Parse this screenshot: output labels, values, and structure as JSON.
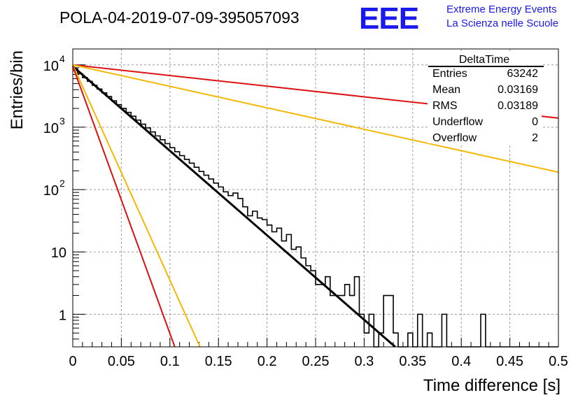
{
  "chart_data": {
    "type": "histogram",
    "title": "POLA-04-2019-07-09-395057093",
    "xlabel": "Time difference [s]",
    "ylabel": "Entries/bin",
    "xlim": [
      0,
      0.5
    ],
    "ylim": [
      0.3,
      18000
    ],
    "yscale": "log",
    "grid": true,
    "x_tick_labels": [
      "0",
      "0.05",
      "0.1",
      "0.15",
      "0.2",
      "0.25",
      "0.3",
      "0.35",
      "0.4",
      "0.45",
      "0.5"
    ],
    "y_tick_labels": [
      {
        "base": "1",
        "exp": ""
      },
      {
        "base": "10",
        "exp": ""
      },
      {
        "base": "10",
        "exp": "2"
      },
      {
        "base": "10",
        "exp": "3"
      },
      {
        "base": "10",
        "exp": "4"
      }
    ],
    "histogram": {
      "bin_width": 0.005,
      "counts": [
        8600,
        7200,
        6250,
        5450,
        4700,
        4100,
        3550,
        3100,
        2650,
        2300,
        2000,
        1730,
        1500,
        1300,
        1120,
        975,
        840,
        725,
        630,
        545,
        470,
        405,
        350,
        305,
        265,
        228,
        195,
        170,
        148,
        127,
        110,
        92,
        80,
        88,
        72,
        53,
        38,
        45,
        35,
        33,
        27,
        21,
        24,
        15,
        19,
        11,
        12,
        8,
        6,
        5,
        3,
        3,
        4,
        2,
        2,
        2,
        3,
        2,
        4,
        1,
        0.5,
        1,
        0,
        0.5,
        2,
        2,
        0.5,
        0,
        0,
        0.5,
        0,
        1,
        0,
        0.5,
        0,
        0,
        1,
        0,
        0,
        0,
        0,
        0,
        0,
        0,
        1,
        0,
        0,
        0,
        0,
        0,
        0,
        0,
        0,
        0,
        0,
        0,
        0,
        0,
        0,
        0
      ]
    },
    "fit_lines": [
      {
        "color": "#000000",
        "points": [
          [
            0,
            9500
          ],
          [
            0.332,
            0.3
          ]
        ]
      },
      {
        "color": "#dd1111",
        "points": [
          [
            0,
            10000
          ],
          [
            0.5,
            1400
          ]
        ]
      },
      {
        "color": "#f5b800",
        "points": [
          [
            0,
            10000
          ],
          [
            0.5,
            190
          ]
        ]
      },
      {
        "color": "#f5b800",
        "points": [
          [
            0,
            10000
          ],
          [
            0.131,
            0.3
          ]
        ]
      },
      {
        "color": "#dd1111",
        "points": [
          [
            0,
            9500
          ],
          [
            0.105,
            0.3
          ]
        ]
      }
    ],
    "stats_box": {
      "title": "DeltaTime",
      "rows": [
        {
          "label": "Entries",
          "value": "63242"
        },
        {
          "label": "Mean",
          "value": "0.03169"
        },
        {
          "label": "RMS",
          "value": "0.03189"
        },
        {
          "label": "Underflow",
          "value": "0"
        },
        {
          "label": "Overflow",
          "value": "2"
        }
      ]
    }
  },
  "branding": {
    "logo_text": "EEE",
    "line1": "Extreme Energy Events",
    "line2": "La Scienza nelle Scuole",
    "color": "#1a1aee"
  }
}
